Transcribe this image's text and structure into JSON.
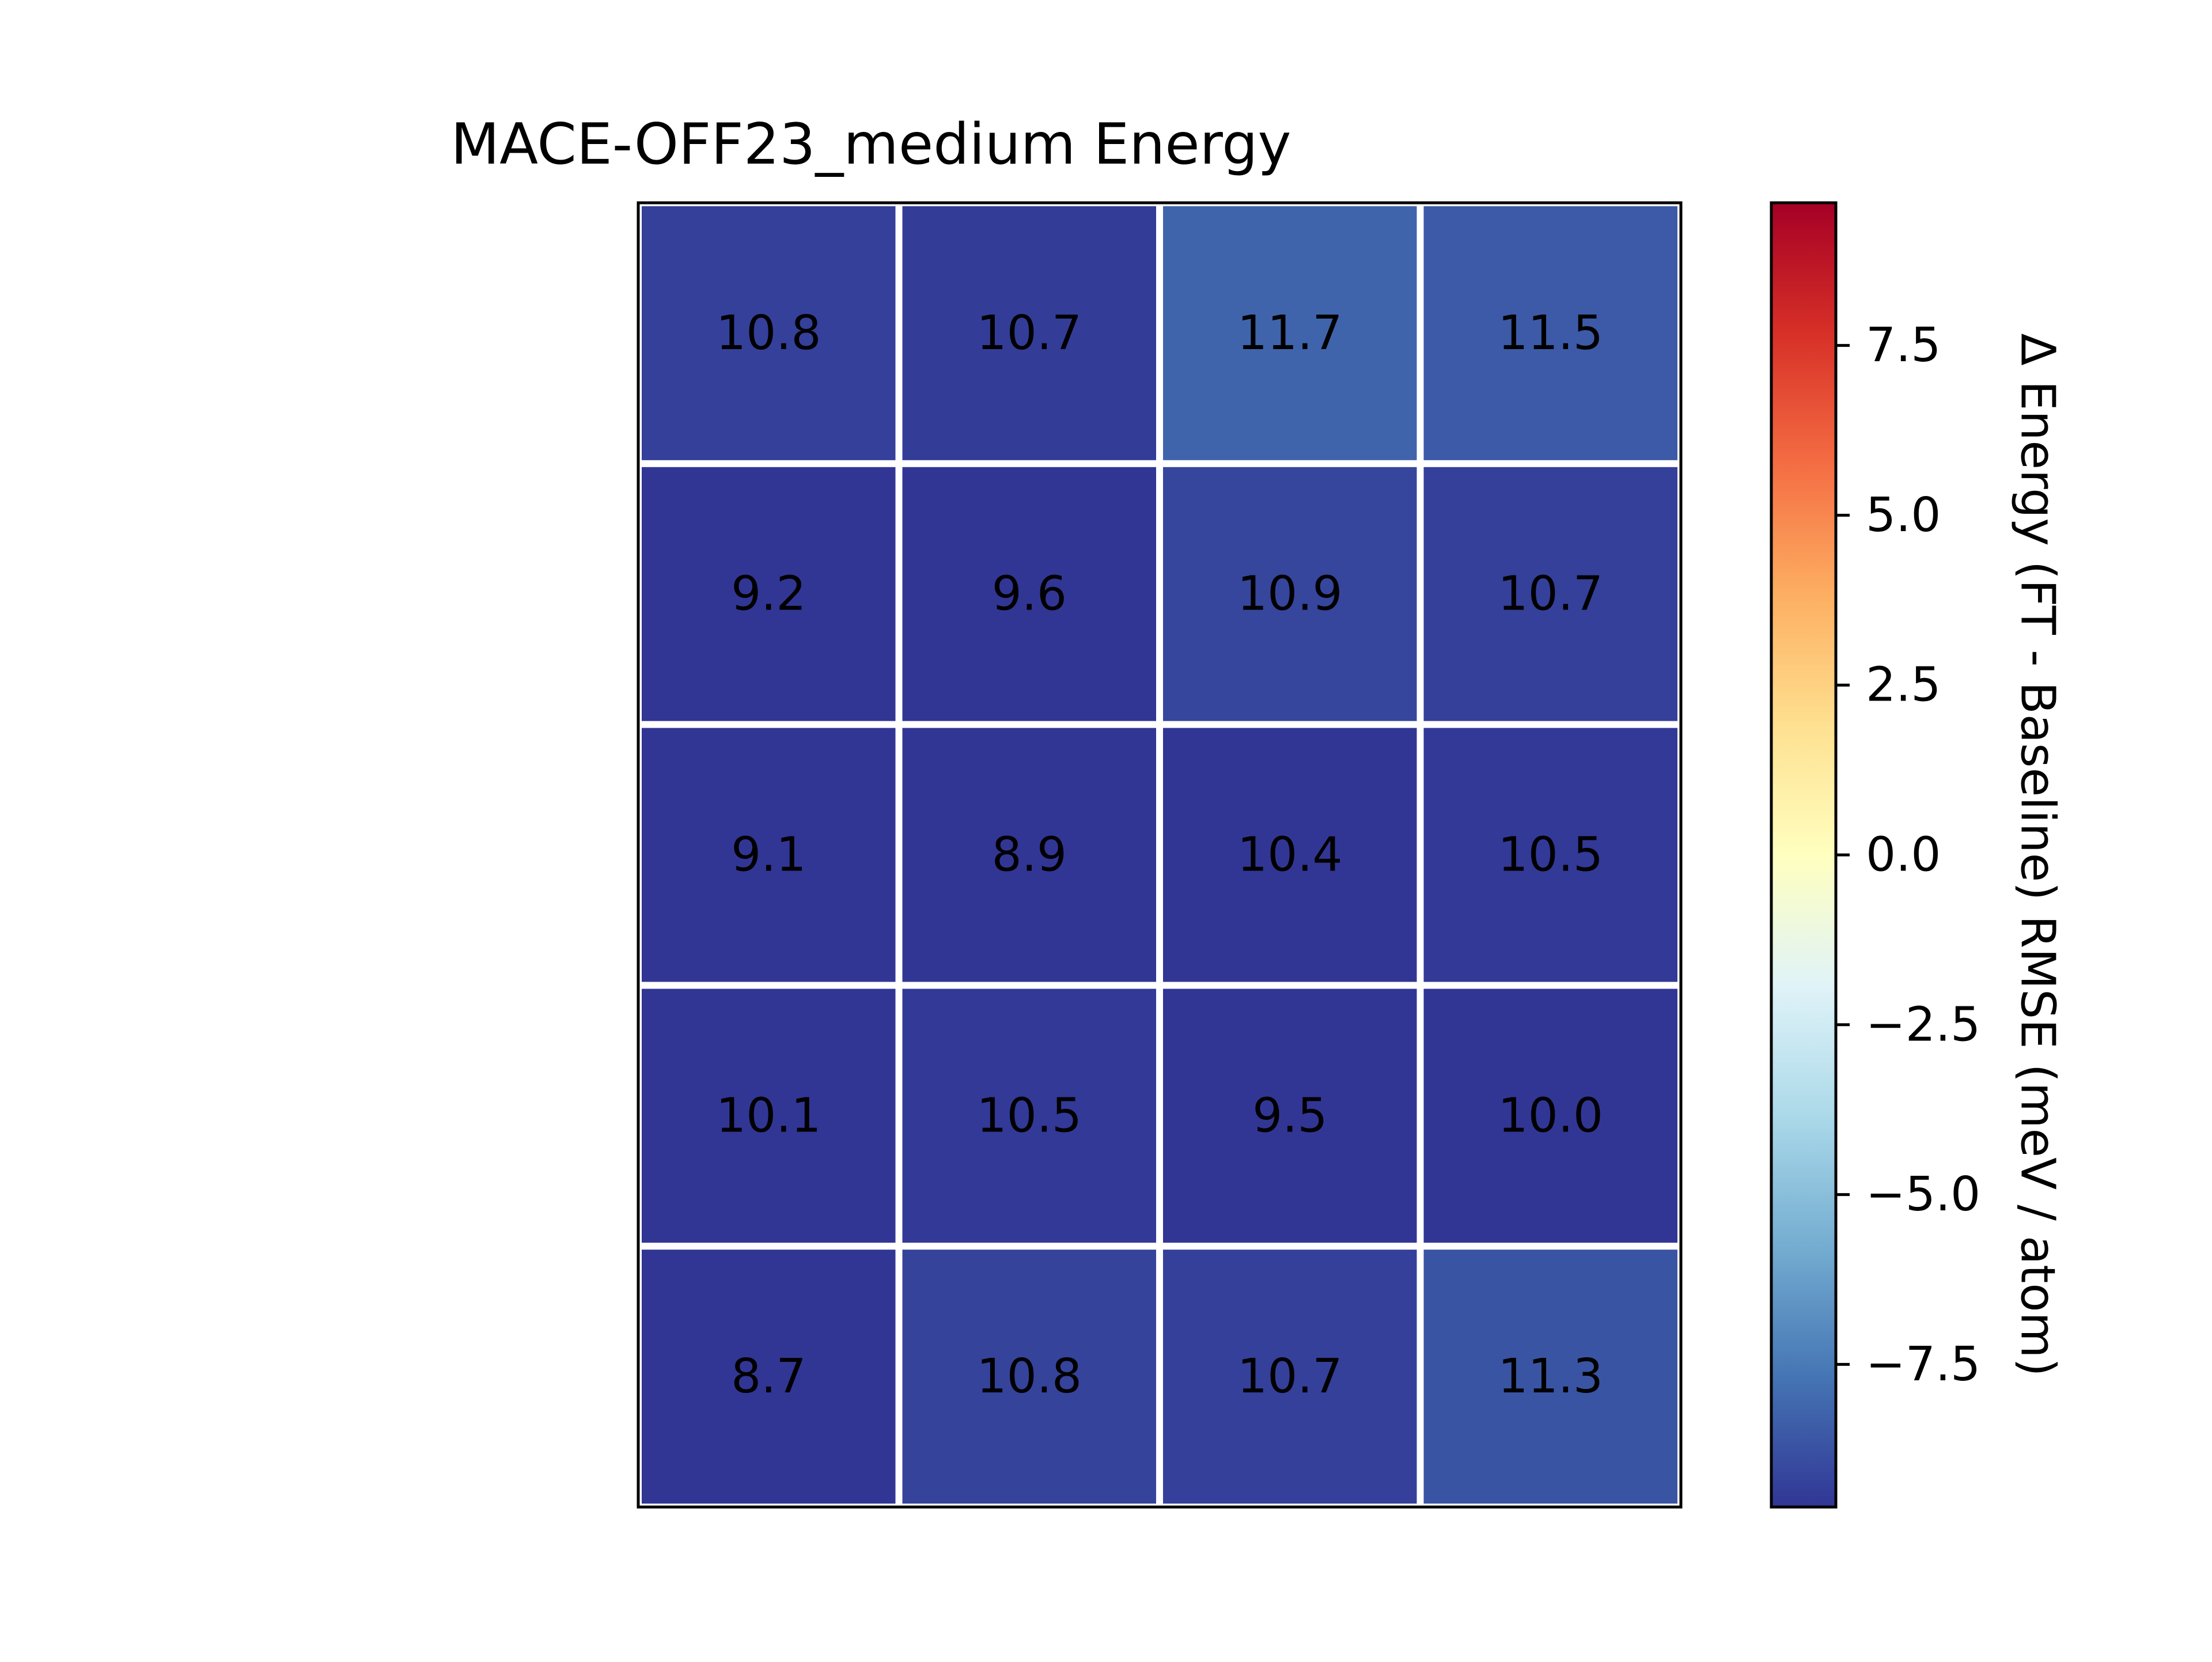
{
  "chart_data": {
    "type": "heatmap",
    "title": "MACE-OFF23_medium Energy",
    "rows": 5,
    "cols": 4,
    "values": [
      [
        -9.3,
        -9.4,
        -8.2,
        -8.5
      ],
      [
        -10.8,
        -10.4,
        -9.1,
        -9.3
      ],
      [
        -10.9,
        -11.1,
        -9.6,
        -9.5
      ],
      [
        -9.9,
        -9.5,
        -10.5,
        -10.0
      ],
      [
        -11.3,
        -9.2,
        -9.3,
        -8.7
      ]
    ],
    "cell_labels": [
      [
        "10.8",
        "10.7",
        "11.7",
        "11.5"
      ],
      [
        "9.2",
        "9.6",
        "10.9",
        "10.7"
      ],
      [
        "9.1",
        "8.9",
        "10.4",
        "10.5"
      ],
      [
        "10.1",
        "10.5",
        "9.5",
        "10.0"
      ],
      [
        "8.7",
        "10.8",
        "10.7",
        "11.3"
      ]
    ],
    "colormap": "RdYlBu_r",
    "color_range": [
      -9.6,
      9.6
    ],
    "colorbar": {
      "label": "Δ Energy (FT - Baseline) RMSE (meV / atom)",
      "ticks": [
        7.5,
        5.0,
        2.5,
        0.0,
        -2.5,
        -5.0,
        -7.5
      ],
      "tick_labels": [
        "7.5",
        "5.0",
        "2.5",
        "0.0",
        "−2.5",
        "−5.0",
        "−7.5"
      ]
    },
    "xlabel": "",
    "ylabel": ""
  }
}
